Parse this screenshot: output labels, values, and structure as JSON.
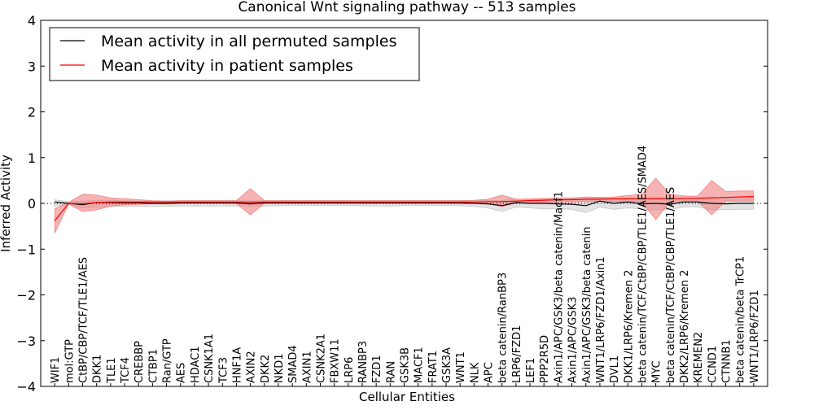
{
  "chart_data": {
    "type": "line",
    "title": "Canonical Wnt signaling pathway -- 513 samples",
    "xlabel": "Cellular Entities",
    "ylabel": "Inferred Activity",
    "ylim": [
      -4,
      4
    ],
    "yticks": [
      -4,
      -3,
      -2,
      -1,
      0,
      1,
      2,
      3,
      4
    ],
    "ytick_labels": [
      "−4",
      "−3",
      "−2",
      "−1",
      "0",
      "1",
      "2",
      "3",
      "4"
    ],
    "grid": false,
    "legend_position": "top-left",
    "categories": [
      "WIF1",
      "mol:GTP",
      "CtBP/CBP/TCF/TLE1/AES",
      "DKK1",
      "TLE1",
      "TCF4",
      "CREBBP",
      "CTBP1",
      "Ran/GTP",
      "AES",
      "HDAC1",
      "CSNK1A1",
      "TCF3",
      "HNF1A",
      "AXIN2",
      "DKK2",
      "NKD1",
      "SMAD4",
      "AXIN1",
      "CSNK2A1",
      "FBXW11",
      "LRP6",
      "RANBP3",
      "FZD1",
      "RAN",
      "GSK3B",
      "MACF1",
      "FRAT1",
      "GSK3A",
      "WNT1",
      "NLK",
      "APC",
      "beta catenin/RanBP3",
      "LRP6/FZD1",
      "LEF1",
      "PPP2R5D",
      "Axin1/APC/GSK3/beta catenin/Macf1",
      "Axin1/APC/GSK3",
      "Axin1/APC/GSK3/beta catenin",
      "WNT1/LRP6/FZD1/Axin1",
      "DVL1",
      "DKK1/LRP6/Kremen 2",
      "beta catenin/TCF/CtBP/CBP/TLE1/AES/SMAD4",
      "MYC",
      "beta catenin/TCF/CtBP/CBP/TLE1/AES",
      "DKK2/LRP6/Kremen 2",
      "KREMEN2",
      "CCND1",
      "CTNNB1",
      "beta catenin/beta TrCP1",
      "WNT1/LRP6/FZD1"
    ],
    "series": [
      {
        "name": "Mean activity in all permuted samples",
        "color": "#000000",
        "band_color": "#c8c8c8",
        "values": [
          0.03,
          0.0,
          -0.03,
          0.02,
          0.02,
          0.01,
          0.01,
          0.0,
          0.0,
          0.01,
          0.01,
          0.01,
          0.01,
          0.01,
          -0.01,
          0.01,
          0.01,
          0.01,
          0.01,
          0.01,
          0.01,
          0.01,
          0.01,
          0.01,
          0.01,
          0.01,
          0.01,
          0.01,
          0.01,
          0.01,
          0.0,
          -0.01,
          -0.05,
          0.02,
          0.0,
          0.0,
          -0.01,
          -0.02,
          -0.05,
          0.05,
          0.0,
          0.03,
          -0.01,
          0.0,
          -0.02,
          0.03,
          0.03,
          0.0,
          -0.01,
          0.0,
          0.0
        ],
        "lower": [
          -0.06,
          -0.02,
          -0.1,
          -0.08,
          -0.07,
          -0.07,
          -0.07,
          -0.07,
          -0.07,
          -0.06,
          -0.06,
          -0.06,
          -0.06,
          -0.06,
          -0.07,
          -0.06,
          -0.05,
          -0.05,
          -0.05,
          -0.05,
          -0.05,
          -0.05,
          -0.05,
          -0.06,
          -0.06,
          -0.05,
          -0.05,
          -0.05,
          -0.05,
          -0.05,
          -0.07,
          -0.1,
          -0.18,
          -0.08,
          -0.1,
          -0.12,
          -0.12,
          -0.13,
          -0.2,
          -0.08,
          -0.13,
          -0.1,
          -0.12,
          -0.14,
          -0.14,
          -0.08,
          -0.08,
          -0.14,
          -0.14,
          -0.13,
          -0.13
        ],
        "upper": [
          0.08,
          0.03,
          0.05,
          0.07,
          0.07,
          0.06,
          0.05,
          0.05,
          0.05,
          0.06,
          0.06,
          0.06,
          0.06,
          0.06,
          0.05,
          0.06,
          0.06,
          0.06,
          0.06,
          0.06,
          0.06,
          0.06,
          0.06,
          0.06,
          0.06,
          0.06,
          0.06,
          0.06,
          0.06,
          0.06,
          0.06,
          0.07,
          0.06,
          0.1,
          0.08,
          0.08,
          0.08,
          0.1,
          0.1,
          0.12,
          0.08,
          0.12,
          0.1,
          0.15,
          0.1,
          0.12,
          0.12,
          0.15,
          0.1,
          0.1,
          0.1
        ]
      },
      {
        "name": "Mean activity in patient samples",
        "color": "#ff0000",
        "band_color": "#f08080",
        "values": [
          -0.38,
          0.0,
          -0.01,
          0.02,
          0.03,
          0.03,
          0.03,
          0.03,
          0.03,
          0.03,
          0.03,
          0.03,
          0.03,
          0.03,
          0.03,
          0.03,
          0.03,
          0.03,
          0.03,
          0.03,
          0.03,
          0.03,
          0.03,
          0.03,
          0.03,
          0.03,
          0.03,
          0.03,
          0.03,
          0.03,
          0.03,
          0.04,
          0.04,
          0.05,
          0.06,
          0.07,
          0.08,
          0.08,
          0.09,
          0.09,
          0.1,
          0.1,
          0.1,
          0.1,
          0.1,
          0.11,
          0.11,
          0.12,
          0.13,
          0.14,
          0.15
        ],
        "lower": [
          -0.65,
          -0.01,
          -0.18,
          -0.14,
          -0.06,
          -0.03,
          -0.02,
          -0.01,
          -0.01,
          0,
          0,
          0,
          0,
          0,
          -0.25,
          0,
          0,
          0,
          0,
          0,
          0,
          0,
          0,
          0,
          0,
          0,
          0,
          0,
          0,
          0,
          0,
          -0.01,
          -0.07,
          0.0,
          0.01,
          0.02,
          0.03,
          0.03,
          0.04,
          0.04,
          0.04,
          0.04,
          0.03,
          -0.35,
          0.02,
          0.05,
          0.05,
          -0.25,
          0.05,
          0.05,
          0.05
        ],
        "upper": [
          -0.12,
          0.02,
          0.2,
          0.18,
          0.12,
          0.1,
          0.08,
          0.06,
          0.05,
          0.06,
          0.06,
          0.06,
          0.06,
          0.06,
          0.32,
          0.06,
          0.06,
          0.06,
          0.06,
          0.06,
          0.06,
          0.06,
          0.06,
          0.06,
          0.06,
          0.06,
          0.06,
          0.06,
          0.06,
          0.06,
          0.07,
          0.09,
          0.18,
          0.09,
          0.1,
          0.11,
          0.12,
          0.12,
          0.14,
          0.13,
          0.14,
          0.17,
          0.2,
          0.55,
          0.2,
          0.16,
          0.16,
          0.5,
          0.26,
          0.27,
          0.27
        ]
      }
    ],
    "reference_line": 0
  }
}
